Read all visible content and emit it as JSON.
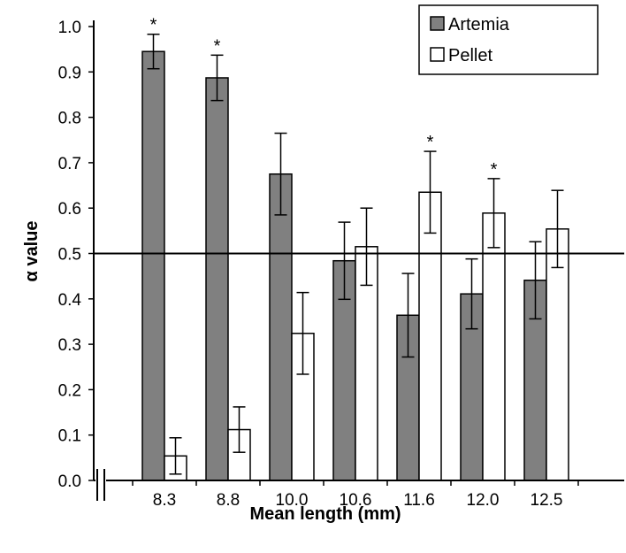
{
  "chart_data": {
    "type": "bar",
    "xlabel": "Mean length (mm)",
    "ylabel": "α value",
    "ylim": [
      0,
      1.0
    ],
    "yticks": [
      "0.0",
      "0.1",
      "0.2",
      "0.3",
      "0.4",
      "0.5",
      "0.6",
      "0.7",
      "0.8",
      "0.9",
      "1.0"
    ],
    "categories": [
      "8.3",
      "8.8",
      "10.0",
      "10.6",
      "11.6",
      "12.0",
      "12.5"
    ],
    "reference_line": 0.5,
    "axis_break": true,
    "grid": false,
    "legend_position": "top-right",
    "significance_marker": "*",
    "series": [
      {
        "name": "Artemia",
        "color": "#808080",
        "values": [
          0.945,
          0.887,
          0.675,
          0.484,
          0.364,
          0.411,
          0.441
        ],
        "error": [
          0.038,
          0.05,
          0.09,
          0.085,
          0.092,
          0.077,
          0.085
        ],
        "significant": [
          true,
          true,
          false,
          false,
          false,
          false,
          false
        ]
      },
      {
        "name": "Pellet",
        "color": "#ffffff",
        "values": [
          0.054,
          0.112,
          0.324,
          0.515,
          0.635,
          0.589,
          0.554
        ],
        "error": [
          0.04,
          0.05,
          0.09,
          0.085,
          0.09,
          0.076,
          0.085
        ],
        "significant": [
          false,
          false,
          false,
          false,
          true,
          true,
          false
        ]
      }
    ]
  }
}
